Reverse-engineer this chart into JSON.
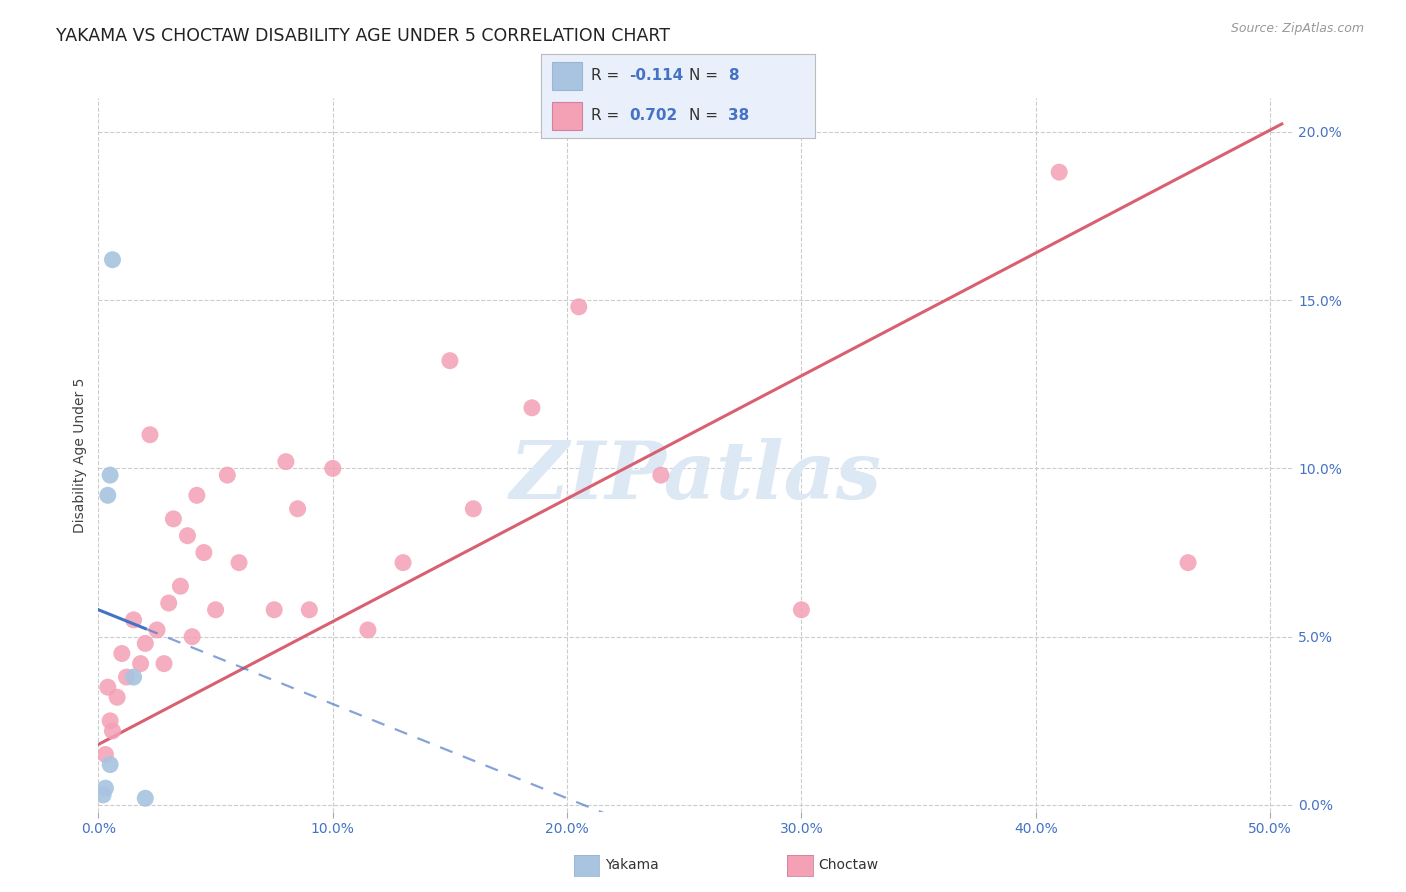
{
  "title": "YAKAMA VS CHOCTAW DISABILITY AGE UNDER 5 CORRELATION CHART",
  "source": "Source: ZipAtlas.com",
  "x_ticks": [
    0.0,
    10.0,
    20.0,
    30.0,
    40.0,
    50.0
  ],
  "y_ticks": [
    0.0,
    5.0,
    10.0,
    15.0,
    20.0
  ],
  "xlim": [
    0.0,
    51.0
  ],
  "ylim": [
    -0.2,
    21.0
  ],
  "yakama_x": [
    0.2,
    0.3,
    0.4,
    0.5,
    0.5,
    0.6,
    1.5,
    2.0
  ],
  "yakama_y": [
    0.3,
    0.5,
    9.2,
    9.8,
    1.2,
    16.2,
    3.8,
    0.2
  ],
  "choctaw_x": [
    0.3,
    0.4,
    0.5,
    0.6,
    0.8,
    1.0,
    1.2,
    1.5,
    1.8,
    2.0,
    2.2,
    2.5,
    2.8,
    3.0,
    3.2,
    3.5,
    3.8,
    4.0,
    4.2,
    4.5,
    5.0,
    5.5,
    6.0,
    7.5,
    8.0,
    8.5,
    9.0,
    10.0,
    11.5,
    13.0,
    15.0,
    16.0,
    18.5,
    20.5,
    24.0,
    30.0,
    41.0,
    46.5
  ],
  "choctaw_y": [
    1.5,
    3.5,
    2.5,
    2.2,
    3.2,
    4.5,
    3.8,
    5.5,
    4.2,
    4.8,
    11.0,
    5.2,
    4.2,
    6.0,
    8.5,
    6.5,
    8.0,
    5.0,
    9.2,
    7.5,
    5.8,
    9.8,
    7.2,
    5.8,
    10.2,
    8.8,
    5.8,
    10.0,
    5.2,
    7.2,
    13.2,
    8.8,
    11.8,
    14.8,
    9.8,
    5.8,
    18.8,
    7.2
  ],
  "R_yakama": -0.114,
  "N_yakama": 8,
  "R_choctaw": 0.702,
  "N_choctaw": 38,
  "yakama_dot_color": "#a8c4e0",
  "choctaw_dot_color": "#f4a0b5",
  "yakama_line_color": "#4472c4",
  "choctaw_line_color": "#d96070",
  "grid_color": "#cccccc",
  "bg_color": "#ffffff",
  "legend_bg": "#eaf0fb",
  "tick_color": "#4472c4",
  "title_color": "#222222",
  "source_color": "#999999",
  "watermark_color": "#dde8f5",
  "ylabel": "Disability Age Under 5",
  "choctaw_line_intercept": 1.8,
  "choctaw_line_slope": 0.365,
  "yakama_line_intercept": 5.8,
  "yakama_line_slope": -0.28
}
